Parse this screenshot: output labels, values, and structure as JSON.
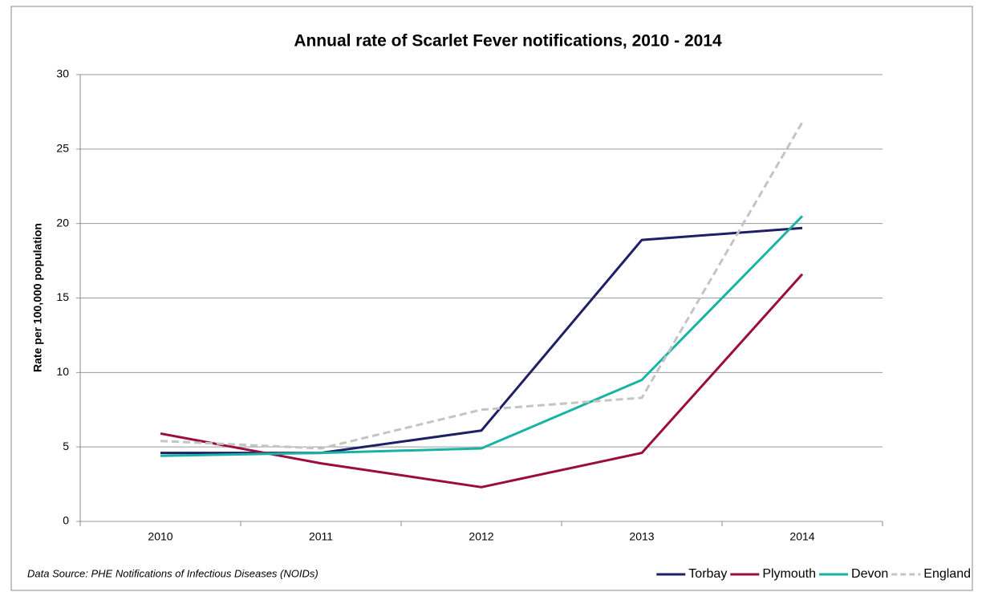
{
  "chart_data": {
    "type": "line",
    "title": "Annual rate of Scarlet Fever notifications, 2010 - 2014",
    "y_label": "Rate per 100,000 population",
    "note": "Data Source: PHE Notifications of Infectious Diseases (NOIDs)",
    "categories": [
      "2010",
      "2011",
      "2012",
      "2013",
      "2014"
    ],
    "series": [
      {
        "name": "Torbay",
        "color": "#1f1f66",
        "values": [
          4.6,
          4.6,
          6.1,
          18.9,
          19.7
        ]
      },
      {
        "name": "Plymouth",
        "color": "#9b0d3d",
        "values": [
          5.9,
          3.9,
          2.3,
          4.6,
          16.6
        ]
      },
      {
        "name": "Devon",
        "color": "#19b2a5",
        "values": [
          4.4,
          4.6,
          4.9,
          9.5,
          20.5
        ]
      },
      {
        "name": "England",
        "color": "#c4c4c4",
        "dashed": true,
        "values": [
          5.4,
          4.9,
          7.5,
          8.3,
          26.8
        ]
      }
    ],
    "ylim": [
      0,
      30
    ],
    "yticks": [
      0,
      5,
      10,
      15,
      20,
      25,
      30
    ],
    "grid": true,
    "legend": "bottom-right"
  }
}
